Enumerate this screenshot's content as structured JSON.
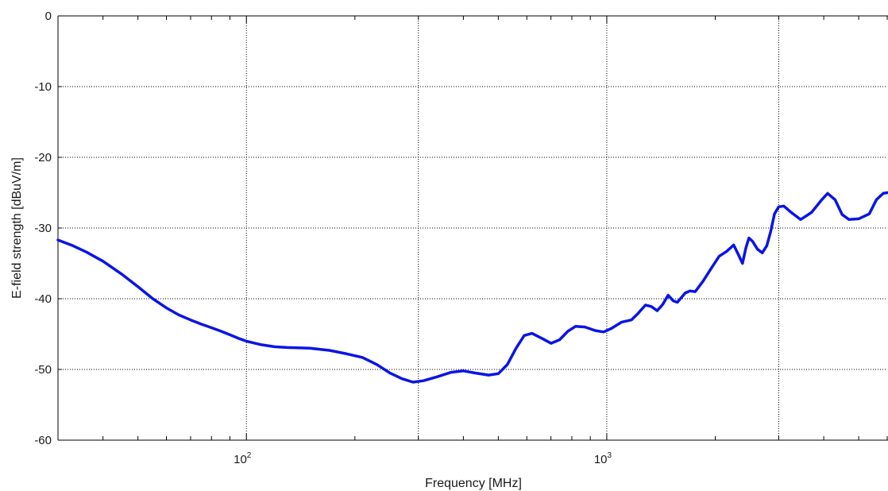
{
  "chart_data": {
    "type": "line",
    "title": "",
    "xlabel": "Frequency [MHz]",
    "ylabel": "E-field strength [dBuV/m]",
    "x_scale": "log",
    "xlim": [
      30,
      6000
    ],
    "ylim": [
      -60,
      0
    ],
    "x_ticks": [
      {
        "value": 100,
        "base": "10",
        "exp": "2"
      },
      {
        "value": 1000,
        "base": "10",
        "exp": "3"
      }
    ],
    "y_ticks": [
      0,
      -10,
      -20,
      -30,
      -40,
      -50,
      -60
    ],
    "grid": true,
    "series": [
      {
        "color": "#0a14e6",
        "points": [
          [
            30,
            -31.7
          ],
          [
            33,
            -32.5
          ],
          [
            36,
            -33.4
          ],
          [
            40,
            -34.7
          ],
          [
            45,
            -36.5
          ],
          [
            50,
            -38.3
          ],
          [
            55,
            -40.0
          ],
          [
            60,
            -41.3
          ],
          [
            65,
            -42.3
          ],
          [
            70,
            -43.0
          ],
          [
            75,
            -43.6
          ],
          [
            80,
            -44.1
          ],
          [
            85,
            -44.6
          ],
          [
            90,
            -45.1
          ],
          [
            95,
            -45.6
          ],
          [
            100,
            -46.0
          ],
          [
            110,
            -46.5
          ],
          [
            120,
            -46.8
          ],
          [
            130,
            -46.9
          ],
          [
            150,
            -47.0
          ],
          [
            170,
            -47.3
          ],
          [
            190,
            -47.8
          ],
          [
            210,
            -48.3
          ],
          [
            230,
            -49.3
          ],
          [
            250,
            -50.5
          ],
          [
            270,
            -51.3
          ],
          [
            290,
            -51.8
          ],
          [
            310,
            -51.6
          ],
          [
            340,
            -51.0
          ],
          [
            370,
            -50.4
          ],
          [
            400,
            -50.2
          ],
          [
            430,
            -50.5
          ],
          [
            470,
            -50.8
          ],
          [
            500,
            -50.6
          ],
          [
            530,
            -49.3
          ],
          [
            560,
            -47.0
          ],
          [
            590,
            -45.2
          ],
          [
            620,
            -44.9
          ],
          [
            660,
            -45.6
          ],
          [
            700,
            -46.3
          ],
          [
            740,
            -45.8
          ],
          [
            780,
            -44.6
          ],
          [
            820,
            -43.9
          ],
          [
            870,
            -44.0
          ],
          [
            930,
            -44.5
          ],
          [
            980,
            -44.7
          ],
          [
            1030,
            -44.2
          ],
          [
            1100,
            -43.3
          ],
          [
            1170,
            -43.0
          ],
          [
            1220,
            -42.1
          ],
          [
            1280,
            -40.9
          ],
          [
            1330,
            -41.1
          ],
          [
            1380,
            -41.7
          ],
          [
            1430,
            -40.8
          ],
          [
            1480,
            -39.5
          ],
          [
            1530,
            -40.3
          ],
          [
            1570,
            -40.5
          ],
          [
            1650,
            -39.2
          ],
          [
            1700,
            -38.9
          ],
          [
            1760,
            -39.0
          ],
          [
            1850,
            -37.5
          ],
          [
            1950,
            -35.7
          ],
          [
            2050,
            -34.0
          ],
          [
            2150,
            -33.3
          ],
          [
            2250,
            -32.4
          ],
          [
            2320,
            -33.8
          ],
          [
            2380,
            -35.0
          ],
          [
            2430,
            -32.9
          ],
          [
            2480,
            -31.4
          ],
          [
            2540,
            -31.9
          ],
          [
            2620,
            -33.0
          ],
          [
            2700,
            -33.5
          ],
          [
            2780,
            -32.5
          ],
          [
            2850,
            -30.5
          ],
          [
            2920,
            -28.0
          ],
          [
            3000,
            -27.0
          ],
          [
            3100,
            -26.9
          ],
          [
            3250,
            -27.8
          ],
          [
            3450,
            -28.8
          ],
          [
            3700,
            -27.8
          ],
          [
            3950,
            -26.0
          ],
          [
            4100,
            -25.1
          ],
          [
            4300,
            -26.0
          ],
          [
            4500,
            -28.1
          ],
          [
            4700,
            -28.8
          ],
          [
            5000,
            -28.7
          ],
          [
            5350,
            -28.0
          ],
          [
            5600,
            -26.0
          ],
          [
            5850,
            -25.1
          ],
          [
            6000,
            -25.0
          ]
        ]
      }
    ]
  }
}
